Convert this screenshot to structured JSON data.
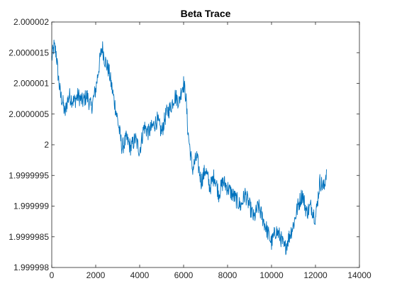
{
  "chart_data": {
    "type": "line",
    "title": "Beta Trace",
    "xlabel": "",
    "ylabel": "",
    "xlim": [
      0,
      14000
    ],
    "ylim": [
      1.999998,
      2.000002
    ],
    "x_ticks": [
      "0",
      "2000",
      "4000",
      "6000",
      "8000",
      "10000",
      "12000",
      "14000"
    ],
    "x_tick_values": [
      0,
      2000,
      4000,
      6000,
      8000,
      10000,
      12000,
      14000
    ],
    "y_ticks": [
      "1.999998",
      "1.9999985",
      "1.999999",
      "1.9999995",
      "2",
      "2.0000005",
      "2.000001",
      "2.0000015",
      "2.000002"
    ],
    "y_tick_values": [
      1.999998,
      1.9999985,
      1.999999,
      1.9999995,
      2.0,
      2.0000005,
      2.000001,
      2.0000015,
      2.000002
    ],
    "grid": false,
    "line_color": "#0072BD",
    "series": [
      {
        "name": "",
        "x": [
          0,
          100,
          200,
          300,
          400,
          500,
          600,
          700,
          800,
          1000,
          1200,
          1400,
          1600,
          1800,
          2000,
          2200,
          2300,
          2400,
          2600,
          2800,
          3000,
          3200,
          3400,
          3600,
          3800,
          4000,
          4200,
          4400,
          4600,
          4800,
          5000,
          5200,
          5400,
          5600,
          5800,
          5900,
          6000,
          6100,
          6200,
          6400,
          6600,
          6800,
          7000,
          7200,
          7400,
          7600,
          7800,
          8000,
          8200,
          8400,
          8600,
          8800,
          9000,
          9200,
          9400,
          9600,
          9800,
          10000,
          10200,
          10400,
          10600,
          10800,
          11000,
          11200,
          11400,
          11600,
          11800,
          12000,
          12200,
          12400,
          12500
        ],
        "y": [
          2.0000014,
          2.0000016,
          2.0000015,
          2.0000011,
          2.0000008,
          2.0000007,
          2.0000005,
          2.0000007,
          2.0000008,
          2.0000007,
          2.0000008,
          2.0000007,
          2.0000008,
          2.0000006,
          2.0000009,
          2.0000014,
          2.0000016,
          2.0000014,
          2.0000012,
          2.0000008,
          2.0000004,
          1.99999995,
          2.0000001,
          1.99999995,
          2.0000001,
          1.9999999,
          2.0000003,
          2.0000002,
          2.0000003,
          2.0000004,
          2.0000002,
          2.0000005,
          2.0000006,
          2.0000008,
          2.0000007,
          2.0000009,
          2.000001,
          2.0000008,
          2.0000002,
          1.9999996,
          1.9999998,
          1.9999994,
          1.9999996,
          1.9999993,
          1.9999995,
          1.9999992,
          1.9999994,
          1.9999993,
          1.9999992,
          1.9999991,
          1.999999,
          1.9999992,
          1.999999,
          1.9999988,
          1.999999,
          1.9999988,
          1.9999986,
          1.9999984,
          1.9999986,
          1.9999985,
          1.9999983,
          1.9999985,
          1.9999987,
          1.999999,
          1.9999992,
          1.9999989,
          1.999999,
          1.9999988,
          1.9999994,
          1.9999993,
          1.9999996
        ]
      }
    ]
  }
}
